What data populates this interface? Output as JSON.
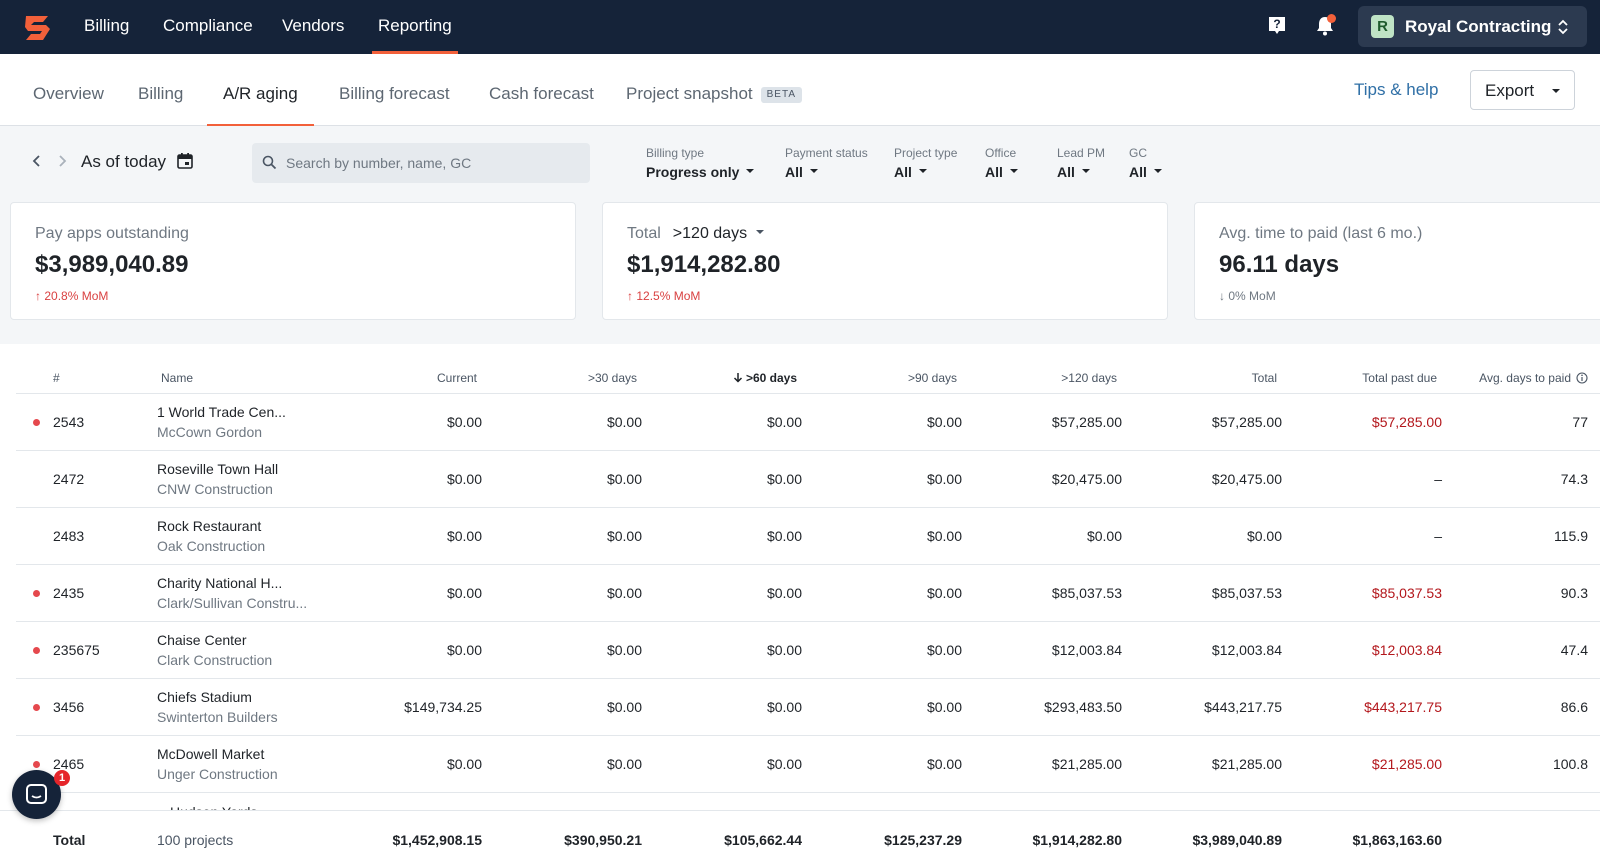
{
  "topnav": {
    "items": [
      {
        "label": "Billing"
      },
      {
        "label": "Compliance"
      },
      {
        "label": "Vendors"
      },
      {
        "label": "Reporting",
        "active": true
      }
    ],
    "company": {
      "initial": "R",
      "name": "Royal Contracting"
    },
    "icons": {
      "logo": "siteline-logo",
      "help": "help-icon",
      "notifications": "bell-icon",
      "switch": "chevron-updown-icon"
    },
    "accent_color": "#f2603a",
    "bg_color": "#152339"
  },
  "subnav": {
    "tabs": [
      {
        "label": "Overview"
      },
      {
        "label": "Billing"
      },
      {
        "label": "A/R aging",
        "active": true
      },
      {
        "label": "Billing forecast"
      },
      {
        "label": "Cash forecast"
      },
      {
        "label": "Project snapshot",
        "badge": "BETA"
      }
    ],
    "tips": "Tips & help",
    "export": "Export"
  },
  "filters": {
    "as_of": "As of today",
    "search_placeholder": "Search by number, name, GC",
    "items": [
      {
        "label": "Billing type",
        "value": "Progress only"
      },
      {
        "label": "Payment status",
        "value": "All"
      },
      {
        "label": "Project type",
        "value": "All"
      },
      {
        "label": "Office",
        "value": "All"
      },
      {
        "label": "Lead PM",
        "value": "All"
      },
      {
        "label": "GC",
        "value": "All"
      }
    ]
  },
  "cards": [
    {
      "label": "Pay apps outstanding",
      "value": "$3,989,040.89",
      "trend": "20.8% MoM",
      "trend_arrow": "↑"
    },
    {
      "label": "Total",
      "selector": ">120 days",
      "value": "$1,914,282.80",
      "trend": "12.5% MoM",
      "trend_arrow": "↑"
    },
    {
      "label": "Avg. time to paid (last 6 mo.)",
      "value": "96.11 days",
      "trend": "0% MoM",
      "trend_arrow": "↓"
    }
  ],
  "table": {
    "headers": {
      "num": "#",
      "name": "Name",
      "current": "Current",
      "d30": ">30 days",
      "d60": ">60 days",
      "d90": ">90 days",
      "d120": ">120 days",
      "total": "Total",
      "past_due": "Total past due",
      "avg_days": "Avg. days to paid"
    },
    "sort_icon": "arrow-down-icon",
    "info_icon": "info-icon",
    "rows": [
      {
        "num": "2543",
        "name": "1 World Trade Cen...",
        "gc": "McCown Gordon",
        "current": "$0.00",
        "d30": "$0.00",
        "d60": "$0.00",
        "d90": "$0.00",
        "d120": "$57,285.00",
        "total": "$57,285.00",
        "past_due": "$57,285.00",
        "avg": "77",
        "overdue": true
      },
      {
        "num": "2472",
        "name": "Roseville Town Hall",
        "gc": "CNW Construction",
        "current": "$0.00",
        "d30": "$0.00",
        "d60": "$0.00",
        "d90": "$0.00",
        "d120": "$20,475.00",
        "total": "$20,475.00",
        "past_due": "–",
        "avg": "74.3",
        "overdue": false
      },
      {
        "num": "2483",
        "name": "Rock Restaurant",
        "gc": "Oak Construction",
        "current": "$0.00",
        "d30": "$0.00",
        "d60": "$0.00",
        "d90": "$0.00",
        "d120": "$0.00",
        "total": "$0.00",
        "past_due": "–",
        "avg": "115.9",
        "overdue": false
      },
      {
        "num": "2435",
        "name": "Charity National H...",
        "gc": "Clark/Sullivan Constru...",
        "current": "$0.00",
        "d30": "$0.00",
        "d60": "$0.00",
        "d90": "$0.00",
        "d120": "$85,037.53",
        "total": "$85,037.53",
        "past_due": "$85,037.53",
        "avg": "90.3",
        "overdue": true
      },
      {
        "num": "235675",
        "name": "Chaise Center",
        "gc": "Clark Construction",
        "current": "$0.00",
        "d30": "$0.00",
        "d60": "$0.00",
        "d90": "$0.00",
        "d120": "$12,003.84",
        "total": "$12,003.84",
        "past_due": "$12,003.84",
        "avg": "47.4",
        "overdue": true
      },
      {
        "num": "3456",
        "name": "Chiefs Stadium",
        "gc": "Swinterton Builders",
        "current": "$149,734.25",
        "d30": "$0.00",
        "d60": "$0.00",
        "d90": "$0.00",
        "d120": "$293,483.50",
        "total": "$443,217.75",
        "past_due": "$443,217.75",
        "avg": "86.6",
        "overdue": true
      },
      {
        "num": "2465",
        "name": "McDowell Market",
        "gc": "Unger Construction",
        "current": "$0.00",
        "d30": "$0.00",
        "d60": "$0.00",
        "d90": "$0.00",
        "d120": "$21,285.00",
        "total": "$21,285.00",
        "past_due": "$21,285.00",
        "avg": "100.8",
        "overdue": true
      }
    ],
    "peek_row": "Hudson Yards",
    "footer": {
      "label": "Total",
      "count": "100 projects",
      "current": "$1,452,908.15",
      "d30": "$390,950.21",
      "d60": "$105,662.44",
      "d90": "$125,237.29",
      "d120": "$1,914,282.80",
      "total": "$3,989,040.89",
      "past_due": "$1,863,163.60"
    }
  },
  "chat": {
    "badge": "1",
    "icon": "chat-icon"
  }
}
